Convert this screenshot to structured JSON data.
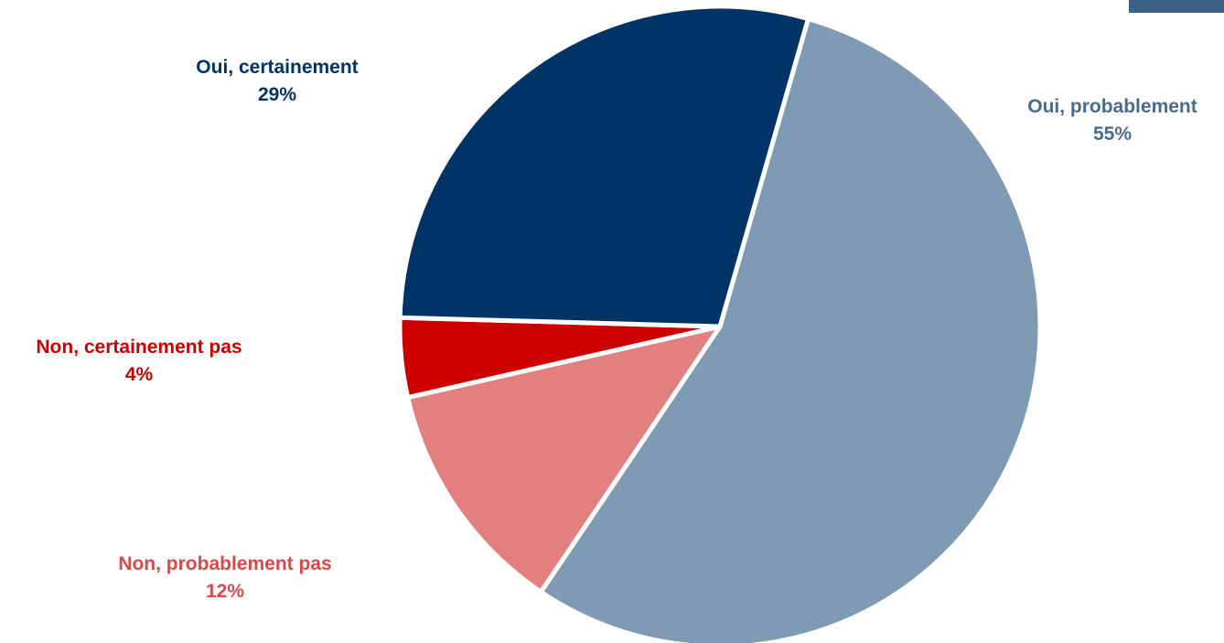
{
  "chart_data": {
    "type": "pie",
    "slices": [
      {
        "label": "Oui, probablement",
        "value": 55,
        "value_label": "55%",
        "color": "#7f9ab3",
        "label_color": "#4a6a8e"
      },
      {
        "label": "Non, probablement pas",
        "value": 12,
        "value_label": "12%",
        "color": "#e27f7f",
        "label_color": "#d64a4a"
      },
      {
        "label": "Non, certainement pas",
        "value": 4,
        "value_label": "4%",
        "color": "#cc0000",
        "label_color": "#cc0000"
      },
      {
        "label": "Oui, certainement",
        "value": 29,
        "value_label": "29%",
        "color": "#003366",
        "label_color": "#003366"
      }
    ]
  },
  "corner_tab_color": "#3d6089"
}
